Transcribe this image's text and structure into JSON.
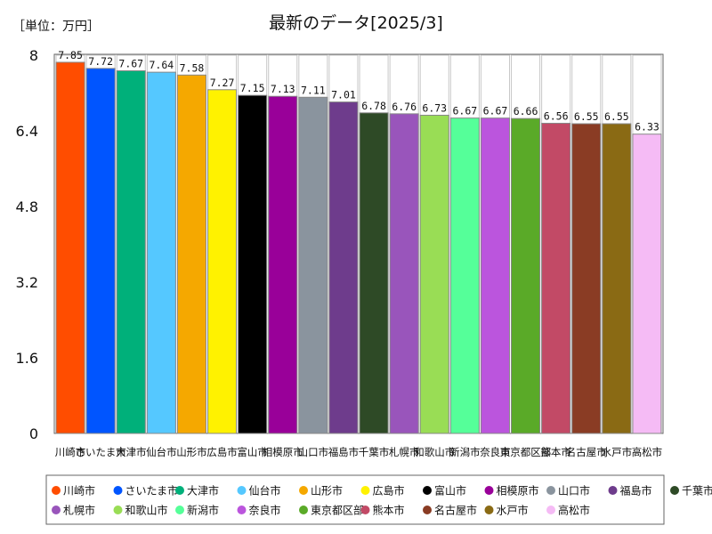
{
  "chart_data": {
    "type": "bar",
    "title": "最新のデータ[2025/3]",
    "unit_label": "［単位：万円］",
    "categories": [
      "川崎市",
      "さいたま市",
      "大津市",
      "仙台市",
      "山形市",
      "広島市",
      "富山市",
      "相模原市",
      "山口市",
      "福島市",
      "千葉市",
      "札幌市",
      "和歌山市",
      "新潟市",
      "奈良市",
      "東京都区部",
      "熊本市",
      "名古屋市",
      "水戸市",
      "高松市"
    ],
    "values": [
      7.85,
      7.72,
      7.67,
      7.64,
      7.58,
      7.27,
      7.15,
      7.13,
      7.11,
      7.01,
      6.78,
      6.76,
      6.73,
      6.67,
      6.67,
      6.66,
      6.56,
      6.55,
      6.55,
      6.33
    ],
    "value_labels": [
      "7.85",
      "7.72",
      "7.67",
      "7.64",
      "7.58",
      "7.27",
      "7.15",
      "7.13",
      "7.11",
      "7.01",
      "6.78",
      "6.76",
      "6.73",
      "6.67",
      "6.67",
      "6.66",
      "6.56",
      "6.55",
      "6.55",
      "6.33"
    ],
    "colors": [
      "#ff4d00",
      "#0055ff",
      "#00b07a",
      "#55c8ff",
      "#f5a800",
      "#fff200",
      "#000000",
      "#990099",
      "#8a949e",
      "#6e3c8c",
      "#2e4a26",
      "#9955bb",
      "#99dd55",
      "#55ff99",
      "#bb55dd",
      "#5aaa28",
      "#c24a66",
      "#8a3c24",
      "#8a6a14",
      "#f5bbf5"
    ],
    "ylim": [
      0,
      8
    ],
    "yticks": [
      0,
      1.6,
      3.2,
      4.8,
      6.4,
      8
    ],
    "ytick_labels": [
      "0",
      "1.6",
      "3.2",
      "4.8",
      "6.4",
      "8"
    ],
    "grid": false,
    "legend_placement": "bottom"
  }
}
